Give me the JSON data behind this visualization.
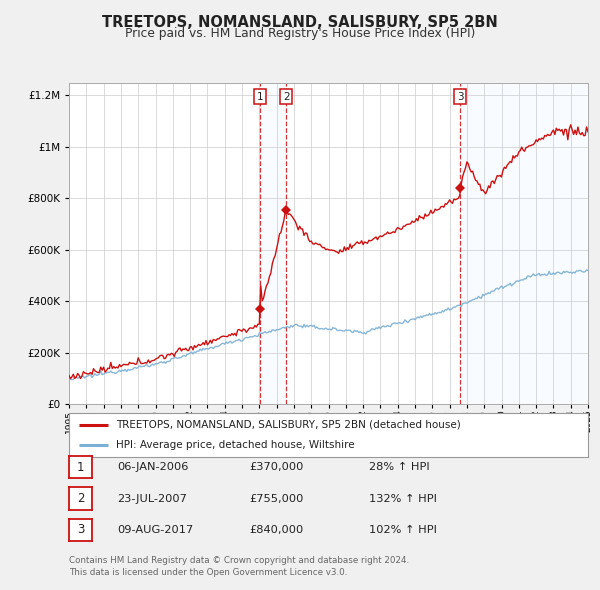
{
  "title": "TREETOPS, NOMANSLAND, SALISBURY, SP5 2BN",
  "subtitle": "Price paid vs. HM Land Registry's House Price Index (HPI)",
  "hpi_color": "#7bafd4",
  "property_color": "#cc1111",
  "background_color": "#f0f0f0",
  "plot_background": "#ffffff",
  "shade_color": "#ddeeff",
  "ylim": [
    0,
    1250000
  ],
  "yticks": [
    0,
    200000,
    400000,
    600000,
    800000,
    1000000,
    1200000
  ],
  "year_start": 1995,
  "year_end": 2025,
  "sale_date_nums": [
    2006.02,
    2007.56,
    2017.61
  ],
  "sale_prices": [
    370000,
    755000,
    840000
  ],
  "sale_labels": [
    "1",
    "2",
    "3"
  ],
  "legend_property": "TREETOPS, NOMANSLAND, SALISBURY, SP5 2BN (detached house)",
  "legend_hpi": "HPI: Average price, detached house, Wiltshire",
  "table_rows": [
    [
      "1",
      "06-JAN-2006",
      "£370,000",
      "28% ↑ HPI"
    ],
    [
      "2",
      "23-JUL-2007",
      "£755,000",
      "132% ↑ HPI"
    ],
    [
      "3",
      "09-AUG-2017",
      "£840,000",
      "102% ↑ HPI"
    ]
  ],
  "footnote": "Contains HM Land Registry data © Crown copyright and database right 2024.\nThis data is licensed under the Open Government Licence v3.0.",
  "vline_dates": [
    2006.02,
    2007.56,
    2017.61
  ]
}
